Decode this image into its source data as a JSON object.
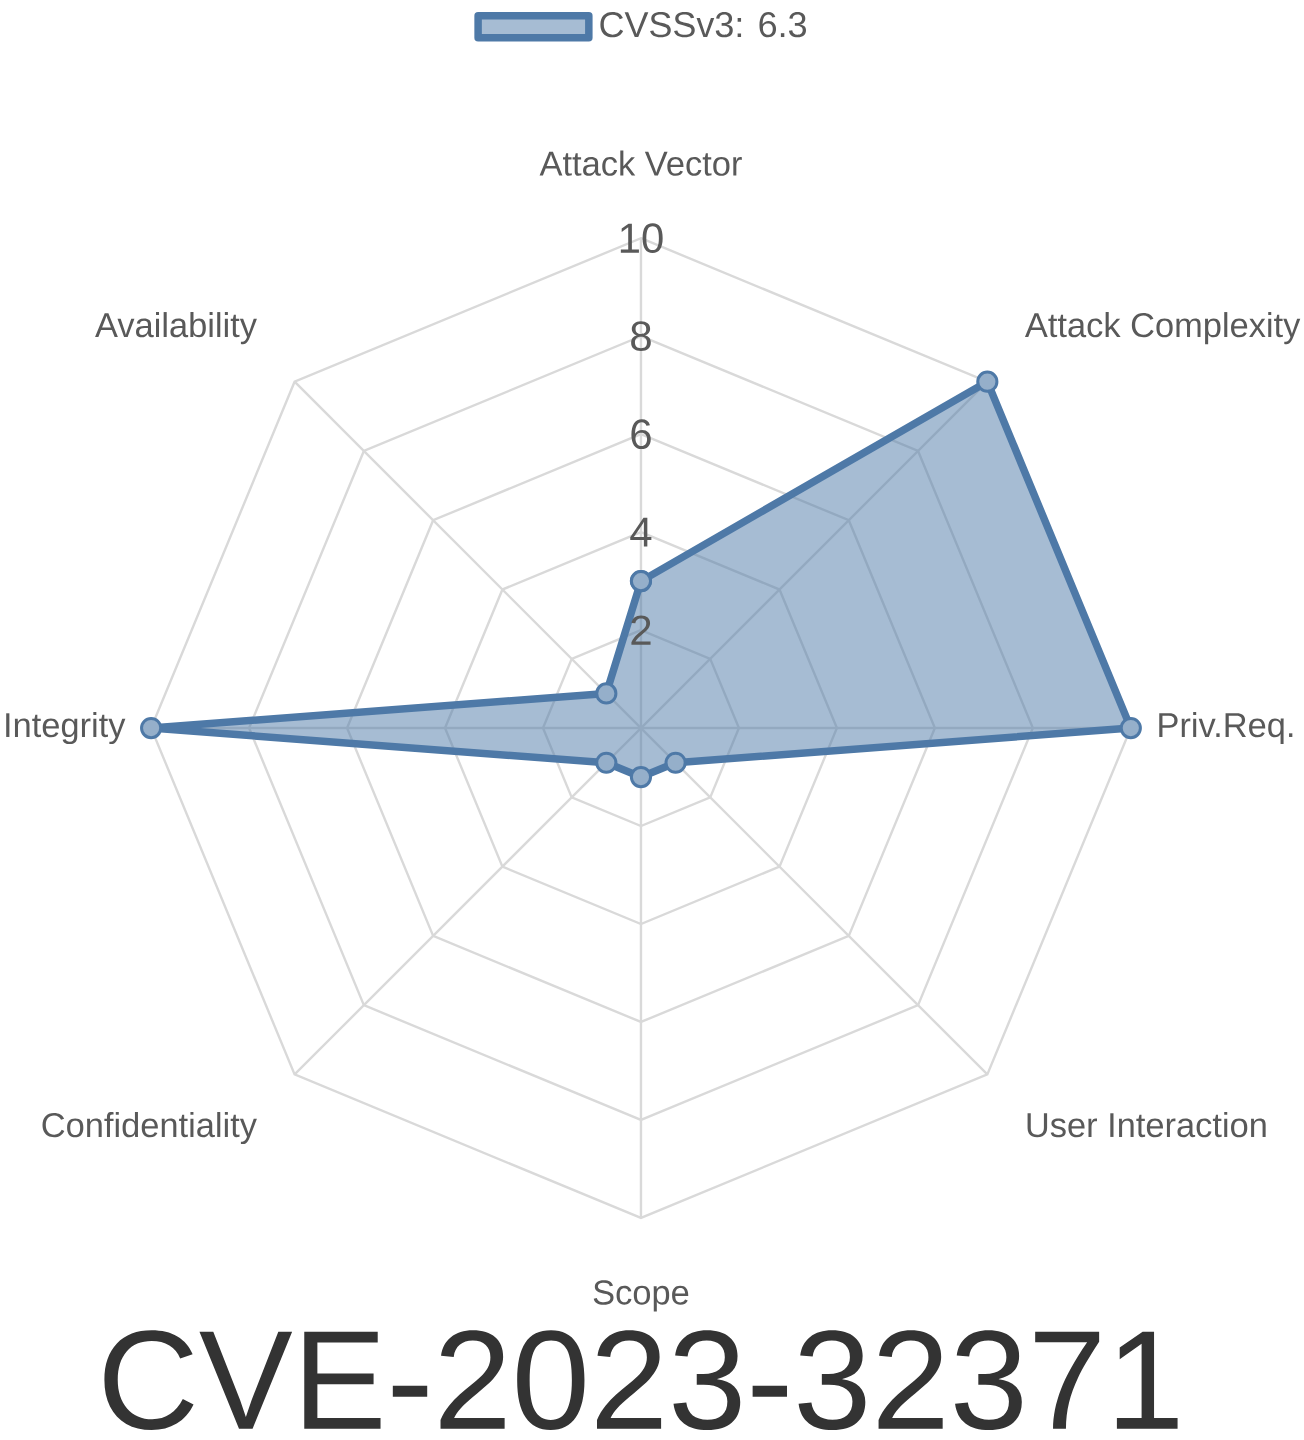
{
  "chart_data": {
    "type": "radar",
    "title": "CVE-2023-32371",
    "categories": [
      "Attack Vector",
      "Attack Complexity",
      "Priv.Req.",
      "User Interaction",
      "Scope",
      "Confidentiality",
      "Integrity",
      "Availability"
    ],
    "series": [
      {
        "name": "CVSSv3: 6.3",
        "color": "#4e79a7",
        "values": [
          3.0,
          10,
          10,
          1.0,
          1.0,
          1.0,
          10,
          1.0
        ]
      }
    ],
    "ylim": [
      0,
      10
    ],
    "yticks": [
      2,
      4,
      6,
      8,
      10
    ],
    "grid": true,
    "legend": "top",
    "marker": "circle"
  }
}
